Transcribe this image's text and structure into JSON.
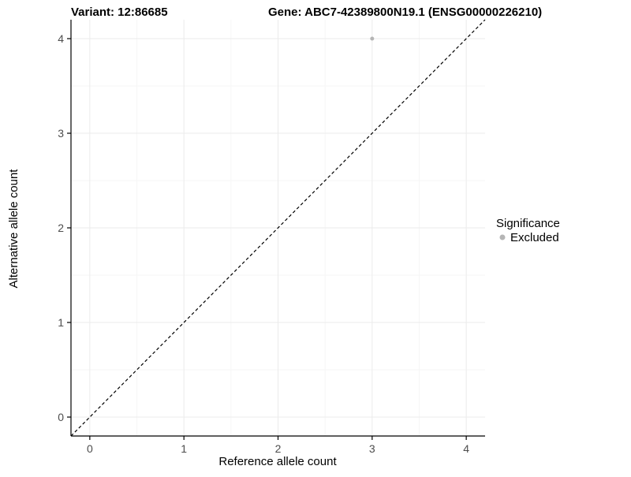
{
  "titles": {
    "left": "Variant: 12:86685",
    "right": "Gene: ABC7-42389800N19.1 (ENSG00000226210)"
  },
  "chart_data": {
    "type": "scatter",
    "title_left": "Variant: 12:86685",
    "title_right": "Gene: ABC7-42389800N19.1 (ENSG00000226210)",
    "xlabel": "Reference allele count",
    "ylabel": "Alternative allele count",
    "xlim": [
      -0.2,
      4.2
    ],
    "ylim": [
      -0.2,
      4.2
    ],
    "xticks": [
      0,
      1,
      2,
      3,
      4
    ],
    "yticks": [
      0,
      1,
      2,
      3,
      4
    ],
    "grid": true,
    "grid_major_color": "#ebebeb",
    "grid_minor_color": "#f6f6f6",
    "axis_color": "#000000",
    "identity_line": {
      "style": "dashed",
      "color": "#000000",
      "from": -0.2,
      "to": 4.2
    },
    "series": [
      {
        "name": "Excluded",
        "color": "#b5b5b5",
        "point_radius": 2.5,
        "points": [
          {
            "x": 3,
            "y": 4
          }
        ]
      }
    ],
    "legend": {
      "title": "Significance",
      "position": "right",
      "entries": [
        {
          "label": "Excluded",
          "color": "#b5b5b5"
        }
      ]
    }
  }
}
